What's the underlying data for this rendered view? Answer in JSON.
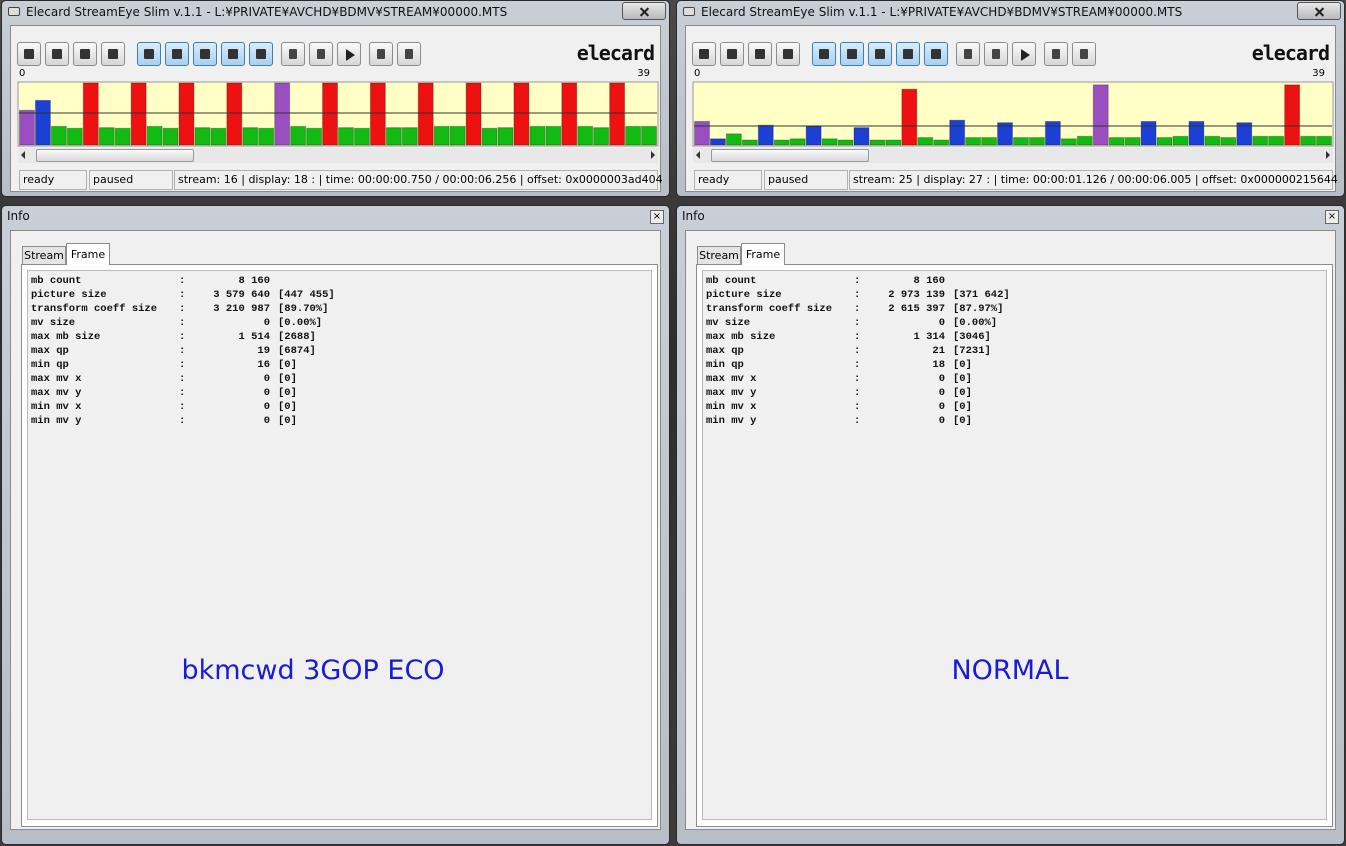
{
  "windows": [
    {
      "title": "Elecard StreamEye Slim v.1.1 - L:¥PRIVATE¥AVCHD¥BDMV¥STREAM¥00000.MTS",
      "logo": "elecard",
      "graph": {
        "range": [
          0,
          39
        ],
        "frame_sizes": [
          56,
          72,
          30,
          27,
          100,
          28,
          27,
          100,
          30,
          27,
          100,
          28,
          27,
          100,
          28,
          27,
          100,
          30,
          27,
          100,
          28,
          27,
          100,
          28,
          28,
          100,
          30,
          30,
          100,
          27,
          28,
          100,
          30,
          30,
          100,
          30,
          28,
          100,
          30,
          30
        ],
        "frame_colors": [
          "#9a4fc0",
          "#1c3fd6",
          "#11bb11",
          "#11bb11",
          "#ee1111",
          "#11bb11",
          "#11bb11",
          "#ee1111",
          "#11bb11",
          "#11bb11",
          "#ee1111",
          "#11bb11",
          "#11bb11",
          "#ee1111",
          "#11bb11",
          "#11bb11",
          "#9a4fc0",
          "#11bb11",
          "#11bb11",
          "#ee1111",
          "#11bb11",
          "#11bb11",
          "#ee1111",
          "#11bb11",
          "#11bb11",
          "#ee1111",
          "#11bb11",
          "#11bb11",
          "#ee1111",
          "#11bb11",
          "#11bb11",
          "#ee1111",
          "#11bb11",
          "#11bb11",
          "#ee1111",
          "#11bb11",
          "#11bb11",
          "#ee1111",
          "#11bb11",
          "#11bb11"
        ]
      },
      "status": [
        "ready",
        "paused",
        "stream: 16 | display: 18 : | time: 00:00:00.750 / 00:00:06.256 | offset: 0x0000003ad404"
      ],
      "info": {
        "title": "Info",
        "tabs": [
          "Stream",
          "Frame"
        ],
        "separator": ":",
        "rows": [
          [
            "mb count",
            "8 160"
          ],
          [
            "picture size",
            "3 579 640",
            "[447 455]"
          ],
          [
            "transform coeff size",
            "3 210 987",
            "[89.70%]"
          ],
          [
            "mv size",
            "0",
            "[0.00%]"
          ],
          [
            "max mb size",
            "1 514",
            "[2688]"
          ],
          [
            "max qp",
            "19",
            "[6874]"
          ],
          [
            "min qp",
            "16",
            "[0]"
          ],
          [
            "max mv x",
            "0",
            "[0]"
          ],
          [
            "max mv y",
            "0",
            "[0]"
          ],
          [
            "min mv x",
            "0",
            "[0]"
          ],
          [
            "min mv y",
            "0",
            "[0]"
          ]
        ],
        "caption": "bkmcwd 3GOP ECO"
      }
    },
    {
      "title": "Elecard StreamEye Slim v.1.1 - L:¥PRIVATE¥AVCHD¥BDMV¥STREAM¥00000.MTS",
      "logo": "elecard",
      "graph": {
        "range": [
          0,
          39
        ],
        "frame_sizes": [
          38,
          10,
          18,
          8,
          32,
          8,
          10,
          30,
          10,
          8,
          28,
          8,
          8,
          90,
          12,
          8,
          40,
          12,
          12,
          36,
          12,
          12,
          38,
          10,
          14,
          97,
          12,
          12,
          38,
          12,
          14,
          38,
          14,
          12,
          36,
          14,
          14,
          97,
          14,
          14
        ],
        "frame_colors": [
          "#9a4fc0",
          "#1c3fd6",
          "#11bb11",
          "#11bb11",
          "#1c3fd6",
          "#11bb11",
          "#11bb11",
          "#1c3fd6",
          "#11bb11",
          "#11bb11",
          "#1c3fd6",
          "#11bb11",
          "#11bb11",
          "#ee1111",
          "#11bb11",
          "#11bb11",
          "#1c3fd6",
          "#11bb11",
          "#11bb11",
          "#1c3fd6",
          "#11bb11",
          "#11bb11",
          "#1c3fd6",
          "#11bb11",
          "#11bb11",
          "#9a4fc0",
          "#11bb11",
          "#11bb11",
          "#1c3fd6",
          "#11bb11",
          "#11bb11",
          "#1c3fd6",
          "#11bb11",
          "#11bb11",
          "#1c3fd6",
          "#11bb11",
          "#11bb11",
          "#ee1111",
          "#11bb11",
          "#11bb11"
        ]
      },
      "status": [
        "ready",
        "paused",
        "stream: 25 | display: 27 : | time: 00:00:01.126 / 00:00:06.005 | offset: 0x000000215644"
      ],
      "info": {
        "title": "Info",
        "tabs": [
          "Stream",
          "Frame"
        ],
        "separator": ":",
        "rows": [
          [
            "mb count",
            "8 160"
          ],
          [
            "picture size",
            "2 973 139",
            "[371 642]"
          ],
          [
            "transform coeff size",
            "2 615 397",
            "[87.97%]"
          ],
          [
            "mv size",
            "0",
            "[0.00%]"
          ],
          [
            "max mb size",
            "1 314",
            "[3046]"
          ],
          [
            "max qp",
            "21",
            "[7231]"
          ],
          [
            "min qp",
            "18",
            "[0]"
          ],
          [
            "max mv x",
            "0",
            "[0]"
          ],
          [
            "max mv y",
            "0",
            "[0]"
          ],
          [
            "min mv x",
            "0",
            "[0]"
          ],
          [
            "min mv y",
            "0",
            "[0]"
          ]
        ],
        "caption": "NORMAL"
      }
    }
  ]
}
